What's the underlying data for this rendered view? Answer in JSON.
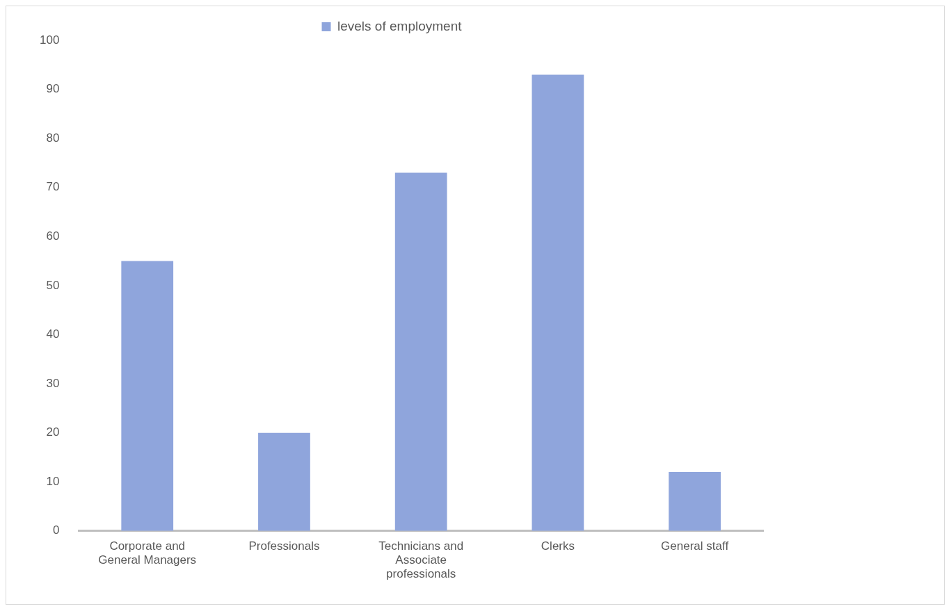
{
  "chart_data": {
    "type": "bar",
    "categories": [
      "Corporate and General Managers",
      "Professionals",
      "Technicians and Associate professionals",
      "Clerks",
      "General staff"
    ],
    "series": [
      {
        "name": "levels of employment",
        "color": "#8fa5dc",
        "values": [
          55,
          20,
          73,
          93,
          12
        ]
      }
    ],
    "ylim": [
      0,
      100
    ],
    "yticks": [
      0,
      10,
      20,
      30,
      40,
      50,
      60,
      70,
      80,
      90,
      100
    ],
    "grid": false,
    "legend": "top"
  }
}
